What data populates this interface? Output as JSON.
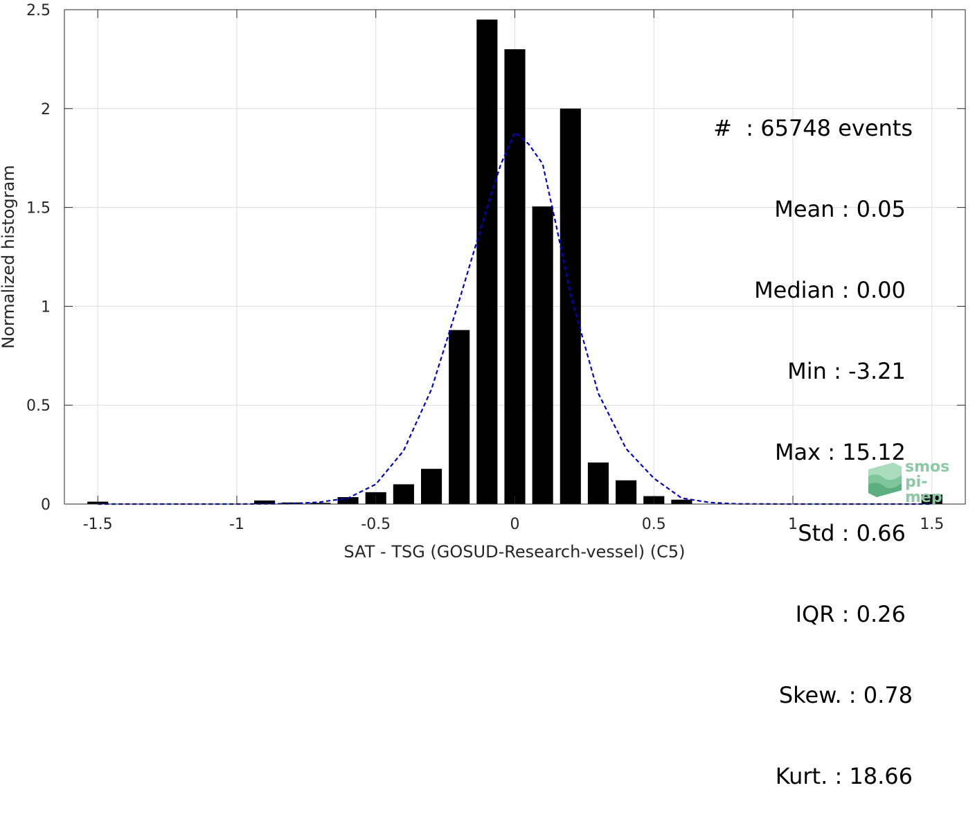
{
  "chart_data": {
    "type": "bar",
    "xlabel": "SAT - TSG (GOSUD-Research-vessel) (C5)",
    "ylabel": "Normalized histogram",
    "xlim": [
      -1.62,
      1.62
    ],
    "ylim": [
      0,
      2.5
    ],
    "grid": true,
    "x_ticks": [
      -1.5,
      -1,
      -0.5,
      0,
      0.5,
      1,
      1.5
    ],
    "x_tick_labels": [
      "-1.5",
      "-1",
      "-0.5",
      "0",
      "0.5",
      "1",
      "1.5"
    ],
    "y_ticks": [
      0,
      0.5,
      1,
      1.5,
      2,
      2.5
    ],
    "y_tick_labels": [
      "0",
      "0.5",
      "1",
      "1.5",
      "2",
      "2.5"
    ],
    "bar_color": "#000000",
    "bar_width": 0.075,
    "bars": [
      {
        "x": -1.5,
        "y": 0.012
      },
      {
        "x": -1.4,
        "y": 0.0
      },
      {
        "x": -1.3,
        "y": 0.0
      },
      {
        "x": -1.2,
        "y": 0.0
      },
      {
        "x": -1.1,
        "y": 0.0
      },
      {
        "x": -1.0,
        "y": 0.0
      },
      {
        "x": -0.9,
        "y": 0.018
      },
      {
        "x": -0.8,
        "y": 0.008
      },
      {
        "x": -0.7,
        "y": 0.006
      },
      {
        "x": -0.6,
        "y": 0.035
      },
      {
        "x": -0.5,
        "y": 0.06
      },
      {
        "x": -0.4,
        "y": 0.1
      },
      {
        "x": -0.3,
        "y": 0.178
      },
      {
        "x": -0.2,
        "y": 0.88
      },
      {
        "x": -0.1,
        "y": 2.45
      },
      {
        "x": 0.0,
        "y": 2.3
      },
      {
        "x": 0.1,
        "y": 1.505
      },
      {
        "x": 0.2,
        "y": 2.0
      },
      {
        "x": 0.3,
        "y": 0.21
      },
      {
        "x": 0.4,
        "y": 0.12
      },
      {
        "x": 0.5,
        "y": 0.04
      },
      {
        "x": 0.6,
        "y": 0.022
      },
      {
        "x": 0.7,
        "y": 0.0
      },
      {
        "x": 0.8,
        "y": 0.0
      },
      {
        "x": 0.9,
        "y": 0.0
      },
      {
        "x": 1.0,
        "y": 0.0
      },
      {
        "x": 1.1,
        "y": 0.0
      },
      {
        "x": 1.2,
        "y": 0.0
      },
      {
        "x": 1.3,
        "y": 0.0
      },
      {
        "x": 1.4,
        "y": 0.0
      },
      {
        "x": 1.5,
        "y": 0.048
      }
    ],
    "fit_line": {
      "style": "dashed",
      "color": "#0000cc",
      "points": [
        [
          -1.5,
          0.0
        ],
        [
          -1.2,
          0.0
        ],
        [
          -1.0,
          0.0
        ],
        [
          -0.8,
          0.002
        ],
        [
          -0.7,
          0.01
        ],
        [
          -0.6,
          0.03
        ],
        [
          -0.5,
          0.1
        ],
        [
          -0.4,
          0.27
        ],
        [
          -0.3,
          0.58
        ],
        [
          -0.2,
          1.03
        ],
        [
          -0.1,
          1.5
        ],
        [
          -0.05,
          1.72
        ],
        [
          0.0,
          1.88
        ],
        [
          0.05,
          1.82
        ],
        [
          0.1,
          1.72
        ],
        [
          0.15,
          1.4
        ],
        [
          0.2,
          1.06
        ],
        [
          0.3,
          0.56
        ],
        [
          0.4,
          0.28
        ],
        [
          0.5,
          0.13
        ],
        [
          0.6,
          0.03
        ],
        [
          0.7,
          0.008
        ],
        [
          0.8,
          0.001
        ],
        [
          1.0,
          0.0
        ],
        [
          1.5,
          0.0
        ]
      ]
    }
  },
  "stats": {
    "lines": [
      "#  : 65748 events",
      "Mean : 0.05 ",
      "Median : 0.00 ",
      "Min : -3.21 ",
      "Max : 15.12 ",
      "Std : 0.66 ",
      "IQR : 0.26 ",
      "Skew. : 0.78",
      "Kurt. : 18.66"
    ]
  },
  "logo": {
    "icon": "smos-logo-icon",
    "line1": "smos",
    "line2": "pi-mep",
    "color": "#8cc9a4"
  }
}
